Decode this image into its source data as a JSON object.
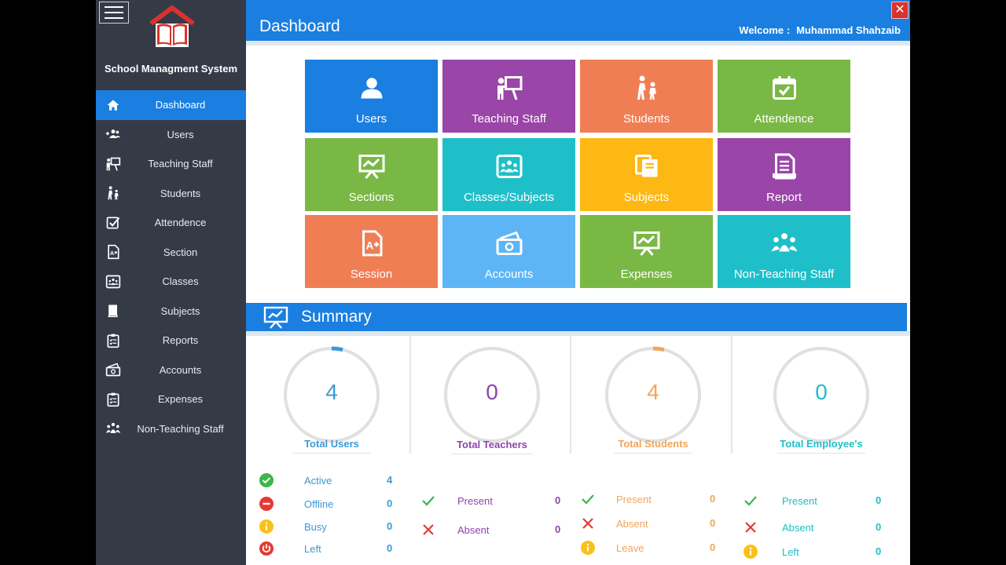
{
  "app": {
    "name": "School Managment System",
    "brand_color": "#1a7fe0",
    "sidebar_color": "#343b47"
  },
  "header": {
    "title": "Dashboard",
    "welcome_label": "Welcome :",
    "user_name": "Muhammad Shahzaib",
    "close_label": "✕"
  },
  "sidebar": {
    "items": [
      {
        "label": "Dashboard",
        "icon": "home-icon",
        "active": true
      },
      {
        "label": "Users",
        "icon": "users-icon"
      },
      {
        "label": "Teaching Staff",
        "icon": "teacher-icon"
      },
      {
        "label": "Students",
        "icon": "students-icon"
      },
      {
        "label": "Attendence",
        "icon": "checkbox-icon"
      },
      {
        "label": "Section",
        "icon": "grade-document-icon"
      },
      {
        "label": "Classes",
        "icon": "classroom-icon"
      },
      {
        "label": "Subjects",
        "icon": "book-icon"
      },
      {
        "label": "Reports",
        "icon": "clipboard-icon"
      },
      {
        "label": "Accounts",
        "icon": "money-icon"
      },
      {
        "label": "Expenses",
        "icon": "clipboard-list-icon"
      },
      {
        "label": "Non-Teaching Staff",
        "icon": "group-icon"
      }
    ]
  },
  "tiles": [
    {
      "label": "Users",
      "icon": "user-icon",
      "color": "#1a7fe0"
    },
    {
      "label": "Teaching Staff",
      "icon": "teacher-board-icon",
      "color": "#9a45a8"
    },
    {
      "label": "Students",
      "icon": "students-walking-icon",
      "color": "#f07e55"
    },
    {
      "label": "Attendence",
      "icon": "calendar-check-icon",
      "color": "#7ab845"
    },
    {
      "label": "Sections",
      "icon": "presentation-chart-icon",
      "color": "#7ab845"
    },
    {
      "label": "Classes/Subjects",
      "icon": "classroom-icon",
      "color": "#1ebfc9"
    },
    {
      "label": "Subjects",
      "icon": "books-icon",
      "color": "#fdb813"
    },
    {
      "label": "Report",
      "icon": "report-document-icon",
      "color": "#9a45a8"
    },
    {
      "label": "Session",
      "icon": "grade-document-icon",
      "color": "#f07e55"
    },
    {
      "label": "Accounts",
      "icon": "money-icon",
      "color": "#5db5f6"
    },
    {
      "label": "Expenses",
      "icon": "presentation-chart-icon",
      "color": "#7ab845"
    },
    {
      "label": "Non-Teaching Staff",
      "icon": "group-icon",
      "color": "#1ebfc9"
    }
  ],
  "summary": {
    "title": "Summary",
    "panels": [
      {
        "title": "Total Users",
        "value": "4",
        "color": "#3a99d8",
        "stats": [
          {
            "label": "Active",
            "value": "4",
            "icon": "check-circle-icon"
          },
          {
            "label": "Offline",
            "value": "0",
            "icon": "minus-circle-icon"
          },
          {
            "label": "Busy",
            "value": "0",
            "icon": "info-circle-icon"
          },
          {
            "label": "Left",
            "value": "0",
            "icon": "power-circle-icon"
          }
        ]
      },
      {
        "title": "Total Teachers",
        "value": "0",
        "color": "#8e44ad",
        "stats": [
          {
            "label": "Present",
            "value": "0",
            "icon": "check-icon"
          },
          {
            "label": "Absent",
            "value": "0",
            "icon": "cross-icon"
          }
        ]
      },
      {
        "title": "Total Students",
        "value": "4",
        "color": "#f0a55a",
        "stats": [
          {
            "label": "Present",
            "value": "0",
            "icon": "check-icon"
          },
          {
            "label": "Absent",
            "value": "0",
            "icon": "cross-icon"
          },
          {
            "label": "Leave",
            "value": "0",
            "icon": "info-circle-icon"
          }
        ]
      },
      {
        "title": "Total Employee's",
        "value": "0",
        "color": "#1ebfc9",
        "stats": [
          {
            "label": "Present",
            "value": "0",
            "icon": "check-icon"
          },
          {
            "label": "Absent",
            "value": "0",
            "icon": "cross-icon"
          },
          {
            "label": "Left",
            "value": "0",
            "icon": "info-circle-icon"
          }
        ]
      }
    ]
  }
}
